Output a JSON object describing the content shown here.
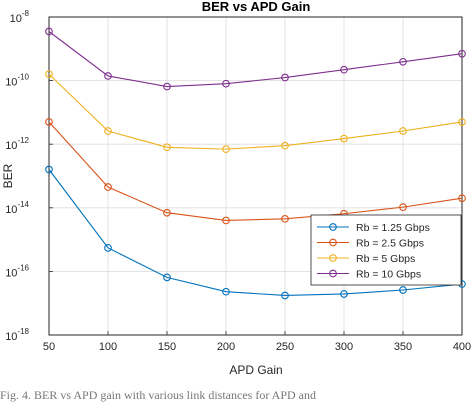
{
  "chart_data": {
    "type": "line",
    "title": "BER vs APD Gain",
    "xlabel": "APD Gain",
    "ylabel": "BER",
    "y_scale": "log",
    "xlim": [
      50,
      400
    ],
    "ylim": [
      1e-18,
      1e-08
    ],
    "x_ticks": [
      "50",
      "100",
      "150",
      "200",
      "250",
      "300",
      "350",
      "400"
    ],
    "y_ticks": [
      {
        "base": "10",
        "exp": "-18"
      },
      {
        "base": "10",
        "exp": "-16"
      },
      {
        "base": "10",
        "exp": "-14"
      },
      {
        "base": "10",
        "exp": "-12"
      },
      {
        "base": "10",
        "exp": "-10"
      },
      {
        "base": "10",
        "exp": "-8"
      }
    ],
    "grid": true,
    "legend_position": "lower-right",
    "x": [
      50,
      100,
      150,
      200,
      250,
      300,
      350,
      400
    ],
    "series": [
      {
        "name": "Rb = 1.25 Gbps",
        "color": "#0072BD",
        "values": [
          1.6e-13,
          5.5e-16,
          6.5e-17,
          2.3e-17,
          1.75e-17,
          1.95e-17,
          2.6e-17,
          4e-17
        ]
      },
      {
        "name": "Rb = 2.5 Gbps",
        "color": "#D95319",
        "values": [
          5e-12,
          4.5e-14,
          7e-15,
          4e-15,
          4.5e-15,
          6.5e-15,
          1.05e-14,
          2e-14
        ]
      },
      {
        "name": "Rb = 5 Gbps",
        "color": "#EDB120",
        "values": [
          1.6e-10,
          2.6e-12,
          8e-13,
          7e-13,
          9e-13,
          1.5e-12,
          2.6e-12,
          5e-12
        ]
      },
      {
        "name": "Rb = 10 Gbps",
        "color": "#7E2F8E",
        "values": [
          3.5e-09,
          1.4e-10,
          6.5e-11,
          8e-11,
          1.25e-10,
          2.2e-10,
          3.9e-10,
          7e-10
        ]
      }
    ]
  },
  "caption": "Fig. 4. BER vs APD gain with various link distances for APD and"
}
